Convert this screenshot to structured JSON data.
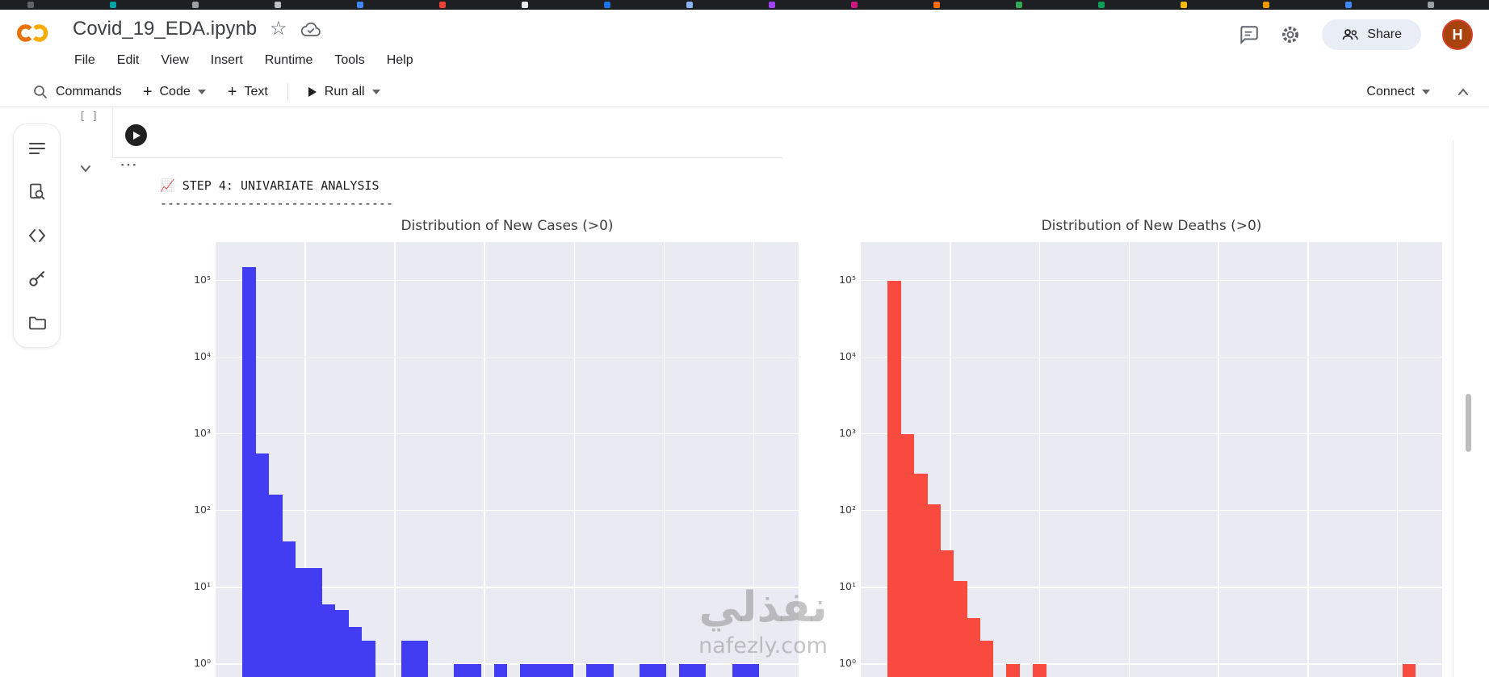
{
  "browser": {
    "favicon_colors": [
      "#5f6368",
      "#00a3a3",
      "#9aa0a6",
      "#bdc1c6",
      "#4285f4",
      "#ea4335",
      "#e8eaed",
      "#1a73e8",
      "#8ab4f8",
      "#a142f4",
      "#d01884",
      "#ff6d01",
      "#34a853",
      "#0f9d58",
      "#fbbc04",
      "#f29900",
      "#4285f4",
      "#9aa0a6"
    ]
  },
  "header": {
    "title": "Covid_19_EDA.ipynb",
    "menu_items": [
      "File",
      "Edit",
      "View",
      "Insert",
      "Runtime",
      "Tools",
      "Help"
    ],
    "share_label": "Share",
    "avatar_letter": "H"
  },
  "toolbar": {
    "commands_label": "Commands",
    "code_label": "Code",
    "text_label": "Text",
    "run_all_label": "Run all",
    "connect_label": "Connect"
  },
  "notebook": {
    "exec_bracket": "[ ]",
    "ellipsis": "⋯",
    "output_line1": "📈 STEP 4: UNIVARIATE ANALYSIS",
    "output_line2": "--------------------------------"
  },
  "watermark": {
    "arabic": "نفذلي",
    "domain": "nafezly.com"
  },
  "chart_data": [
    {
      "type": "bar",
      "title": "Distribution of New Cases (>0)",
      "color": "#423df2",
      "bg": "#eaeaf2",
      "grid_color": "#ffffff",
      "yscale": "log",
      "ylim": [
        1,
        316228
      ],
      "ytick_labels": [
        "10⁰",
        "10¹",
        "10²",
        "10³",
        "10⁴",
        "10⁵"
      ],
      "xlabel": "",
      "ylabel": "",
      "legend": "none",
      "values": [
        150000,
        550,
        160,
        40,
        18,
        18,
        6,
        5,
        3,
        2,
        0,
        0,
        2,
        2,
        0,
        0,
        1,
        1,
        0,
        1,
        0,
        1,
        1,
        1,
        1,
        0,
        1,
        1,
        0,
        0,
        1,
        1,
        0,
        1,
        1,
        0,
        0,
        1,
        1,
        0
      ]
    },
    {
      "type": "bar",
      "title": "Distribution of New Deaths (>0)",
      "color": "#f84a3e",
      "bg": "#eaeaf2",
      "grid_color": "#ffffff",
      "yscale": "log",
      "ylim": [
        1,
        316228
      ],
      "ytick_labels": [
        "10⁰",
        "10¹",
        "10²",
        "10³",
        "10⁴",
        "10⁵"
      ],
      "xlabel": "",
      "ylabel": "",
      "legend": "none",
      "values": [
        100000,
        1000,
        300,
        120,
        30,
        12,
        4,
        2,
        0,
        1,
        0,
        1,
        0,
        0,
        0,
        0,
        0,
        0,
        0,
        0,
        0,
        0,
        0,
        0,
        0,
        0,
        0,
        0,
        0,
        0,
        0,
        0,
        0,
        0,
        0,
        0,
        0,
        0,
        0,
        1
      ]
    }
  ]
}
